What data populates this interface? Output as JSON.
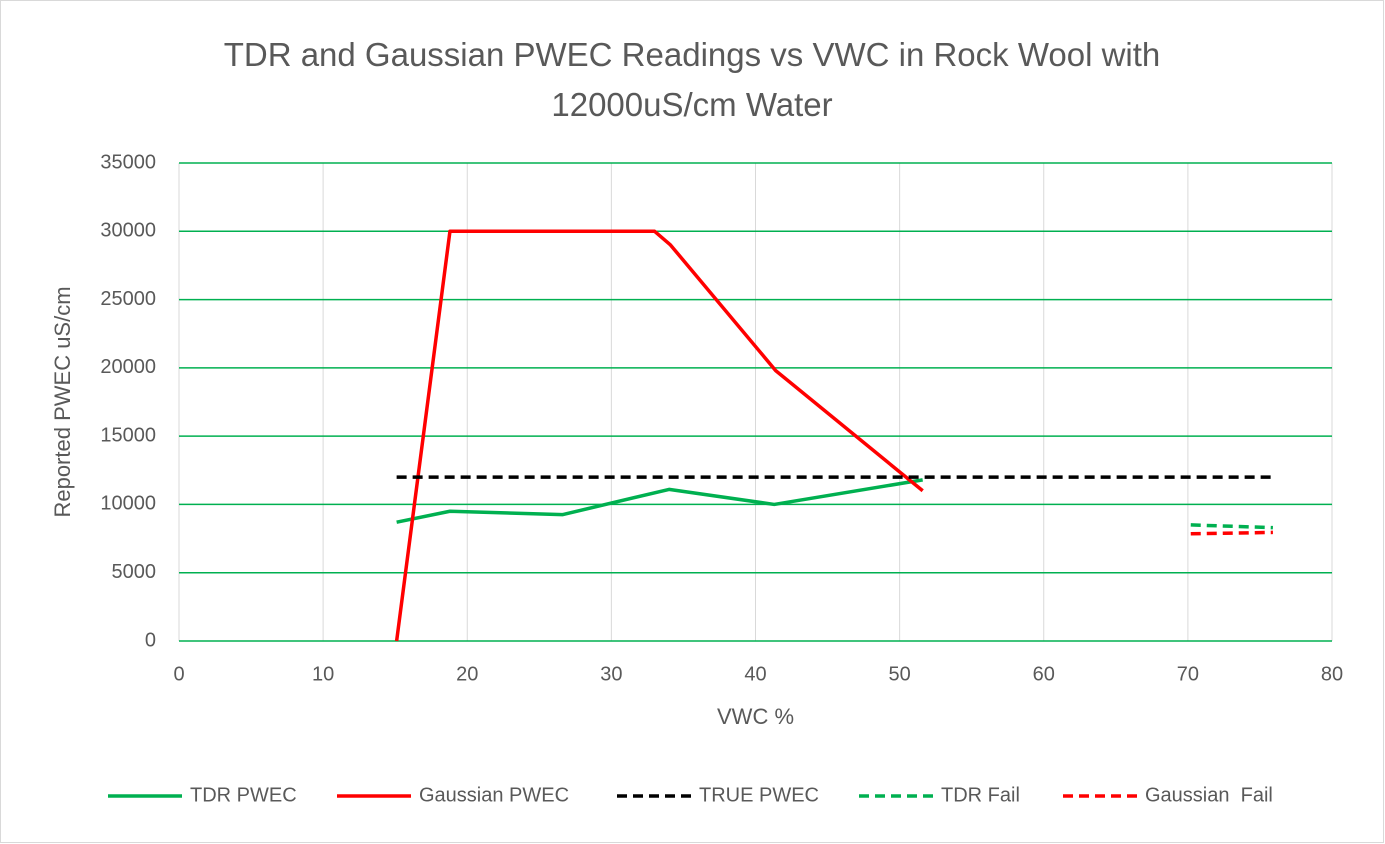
{
  "chart_data": {
    "type": "line",
    "title": "TDR and Gaussian PWEC Readings vs VWC in Rock Wool with 12000uS/cm Water",
    "x_label": "VWC %",
    "y_label": "Reported PWEC uS/cm",
    "xlim": [
      0,
      80
    ],
    "xticks": [
      0,
      10,
      20,
      30,
      40,
      50,
      60,
      70,
      80
    ],
    "ylim": [
      0,
      35000
    ],
    "yticks": [
      0,
      5000,
      10000,
      15000,
      20000,
      25000,
      30000,
      35000
    ],
    "grid": true,
    "h_grid_color": "#00b050",
    "v_grid_color": "#d9d9d9",
    "legend": "bottom",
    "series": [
      {
        "name": "TDR PWEC",
        "color": "#00b050",
        "style": "solid",
        "x": [
          15.1,
          18.8,
          26.6,
          34.0,
          41.3,
          51.6
        ],
        "values": [
          8700,
          9500,
          9250,
          11100,
          10000,
          11800
        ]
      },
      {
        "name": "Gaussian PWEC",
        "color": "#ff0000",
        "style": "solid",
        "x": [
          15.1,
          18.8,
          33.0,
          34.1,
          41.4,
          51.6
        ],
        "values": [
          0,
          30000,
          30000,
          29000,
          19800,
          11000
        ]
      },
      {
        "name": "TRUE PWEC",
        "color": "#000000",
        "style": "dashed",
        "x": [
          15.1,
          75.9
        ],
        "values": [
          12000,
          12000
        ]
      },
      {
        "name": "TDR Fail",
        "color": "#00b050",
        "style": "dashed",
        "x": [
          70.2,
          75.9
        ],
        "values": [
          8500,
          8300
        ]
      },
      {
        "name": "Gaussian  Fail",
        "color": "#ff0000",
        "style": "dashed",
        "x": [
          70.2,
          75.9
        ],
        "values": [
          7850,
          7950
        ]
      }
    ]
  }
}
